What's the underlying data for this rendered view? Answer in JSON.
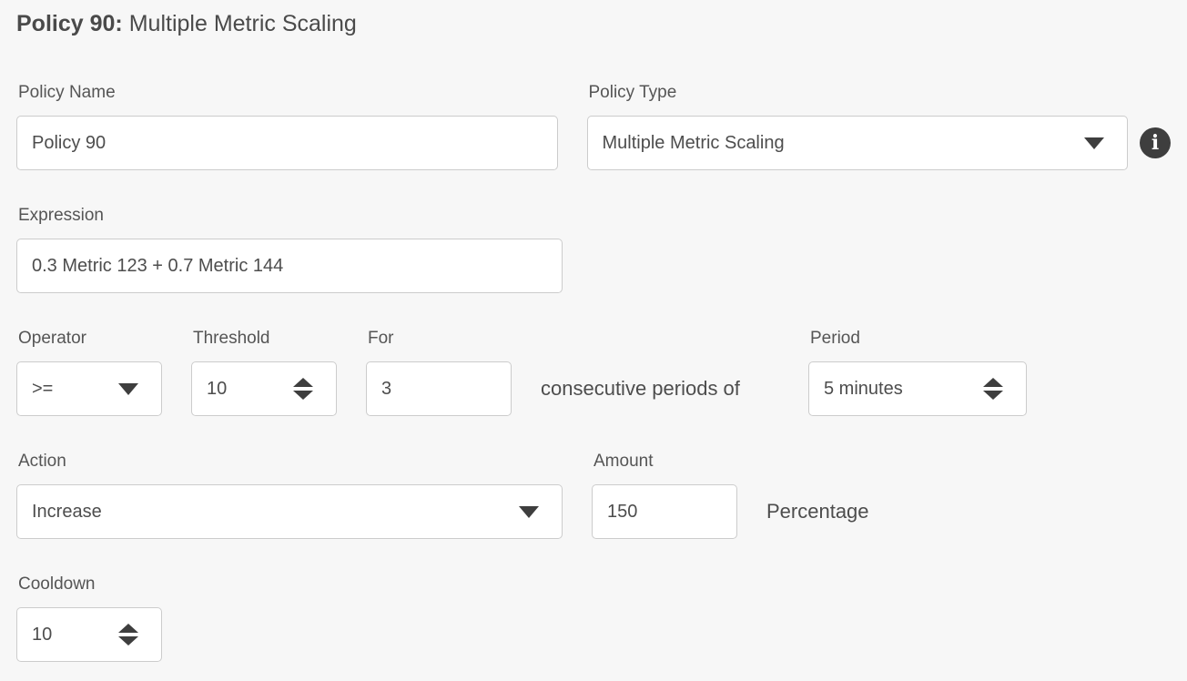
{
  "title": {
    "prefix": "Policy 90:",
    "rest": "Multiple Metric Scaling"
  },
  "fields": {
    "policy_name": {
      "label": "Policy Name",
      "value": "Policy 90"
    },
    "policy_type": {
      "label": "Policy Type",
      "value": "Multiple Metric Scaling"
    },
    "expression": {
      "label": "Expression",
      "value": "0.3 Metric 123 + 0.7 Metric 144"
    },
    "operator": {
      "label": "Operator",
      "value": ">="
    },
    "threshold": {
      "label": "Threshold",
      "value": "10"
    },
    "for": {
      "label": "For",
      "value": "3"
    },
    "consecutive_text": "consecutive periods of",
    "period": {
      "label": "Period",
      "value": "5 minutes"
    },
    "action": {
      "label": "Action",
      "value": "Increase"
    },
    "amount": {
      "label": "Amount",
      "value": "150"
    },
    "amount_unit": "Percentage",
    "cooldown": {
      "label": "Cooldown",
      "value": "10"
    }
  },
  "icons": {
    "info": "i"
  },
  "colors": {
    "background": "#f7f7f7",
    "control_border": "#cccccc",
    "control_background": "#ffffff",
    "text": "#4d4d4d",
    "label": "#555555",
    "icon": "#3e3e3e"
  }
}
